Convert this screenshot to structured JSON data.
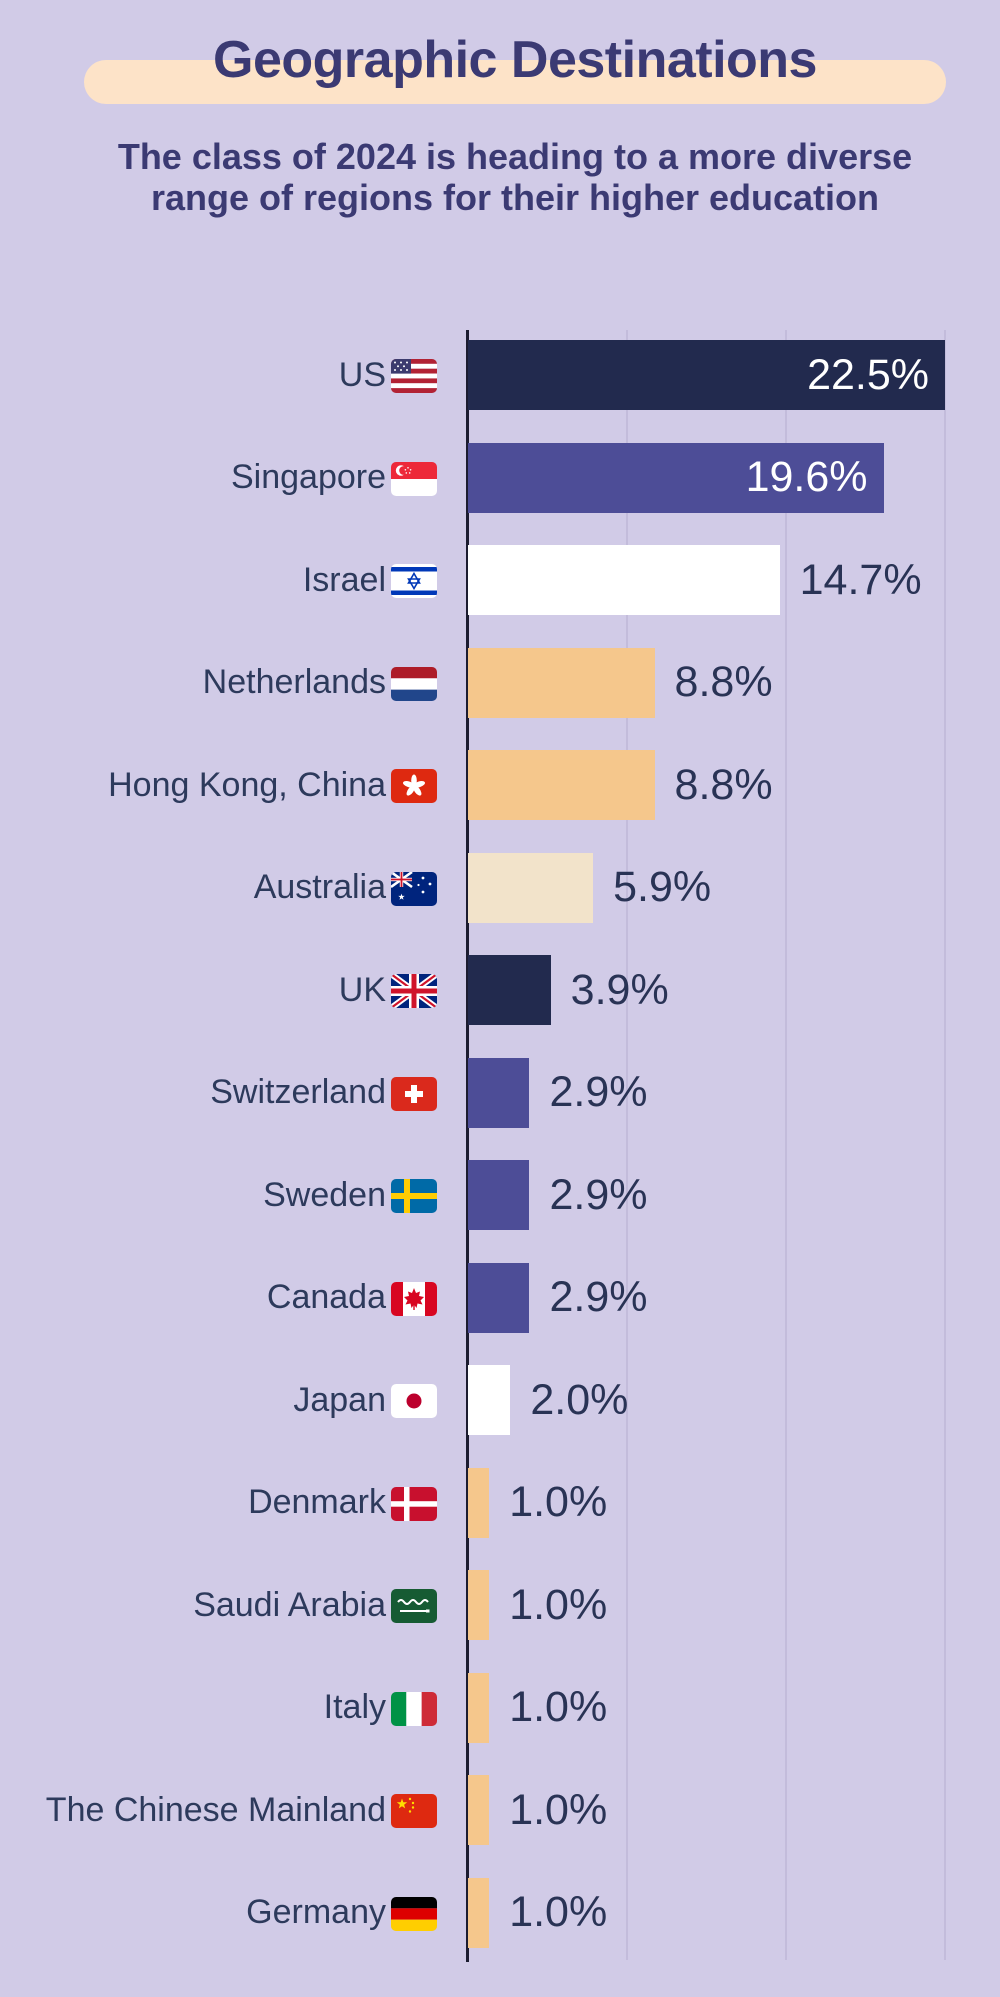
{
  "page": {
    "background": "#d1cbe7"
  },
  "header": {
    "title": "Geographic Destinations",
    "subtitle_line1": "The class of 2024 is heading to a more diverse",
    "subtitle_line2": "range of regions for their higher education",
    "title_color": "#3b3a73",
    "pill_color": "#fde3c8"
  },
  "chart_data": {
    "type": "bar",
    "orientation": "horizontal",
    "unit": "%",
    "xlim": [
      0,
      23.6
    ],
    "gridlines_percent": [
      7.5,
      15,
      22.5
    ],
    "grid": true,
    "legend": "none",
    "axis_color": "#1c1c30",
    "gridline_color": "#c3bcdb",
    "category_label_color": "#2d3a5c",
    "value_label_color": "#293355",
    "value_label_inside_color": "#ffffff",
    "categories": [
      "US",
      "Singapore",
      "Israel",
      "Netherlands",
      "Hong Kong, China",
      "Australia",
      "UK",
      "Switzerland",
      "Sweden",
      "Canada",
      "Japan",
      "Denmark",
      "Saudi Arabia",
      "Italy",
      "The Chinese Mainland",
      "Germany"
    ],
    "values": [
      22.5,
      19.6,
      14.7,
      8.8,
      8.8,
      5.9,
      3.9,
      2.9,
      2.9,
      2.9,
      2.0,
      1.0,
      1.0,
      1.0,
      1.0,
      1.0
    ],
    "items": [
      {
        "label": "US",
        "flag": "us-flag",
        "value": 22.5,
        "display": "22.5%",
        "color": "#222a4e",
        "value_label": "inside"
      },
      {
        "label": "Singapore",
        "flag": "singapore-flag",
        "value": 19.6,
        "display": "19.6%",
        "color": "#4d4d97",
        "value_label": "inside"
      },
      {
        "label": "Israel",
        "flag": "israel-flag",
        "value": 14.7,
        "display": "14.7%",
        "color": "#ffffff",
        "value_label": "outside"
      },
      {
        "label": "Netherlands",
        "flag": "netherlands-flag",
        "value": 8.8,
        "display": "8.8%",
        "color": "#f5c78c",
        "value_label": "outside"
      },
      {
        "label": "Hong Kong, China",
        "flag": "hong-kong-flag",
        "value": 8.8,
        "display": "8.8%",
        "color": "#f5c78c",
        "value_label": "outside"
      },
      {
        "label": "Australia",
        "flag": "australia-flag",
        "value": 5.9,
        "display": "5.9%",
        "color": "#f2e3ca",
        "value_label": "outside"
      },
      {
        "label": "UK",
        "flag": "uk-flag",
        "value": 3.9,
        "display": "3.9%",
        "color": "#222a4e",
        "value_label": "outside"
      },
      {
        "label": "Switzerland",
        "flag": "switzerland-flag",
        "value": 2.9,
        "display": "2.9%",
        "color": "#4d4d97",
        "value_label": "outside"
      },
      {
        "label": "Sweden",
        "flag": "sweden-flag",
        "value": 2.9,
        "display": "2.9%",
        "color": "#4d4d97",
        "value_label": "outside"
      },
      {
        "label": "Canada",
        "flag": "canada-flag",
        "value": 2.9,
        "display": "2.9%",
        "color": "#4d4d97",
        "value_label": "outside"
      },
      {
        "label": "Japan",
        "flag": "japan-flag",
        "value": 2.0,
        "display": "2.0%",
        "color": "#ffffff",
        "value_label": "outside"
      },
      {
        "label": "Denmark",
        "flag": "denmark-flag",
        "value": 1.0,
        "display": "1.0%",
        "color": "#f5c78c",
        "value_label": "outside"
      },
      {
        "label": "Saudi Arabia",
        "flag": "saudi-arabia-flag",
        "value": 1.0,
        "display": "1.0%",
        "color": "#f5c78c",
        "value_label": "outside"
      },
      {
        "label": "Italy",
        "flag": "italy-flag",
        "value": 1.0,
        "display": "1.0%",
        "color": "#f5c78c",
        "value_label": "outside"
      },
      {
        "label": "The Chinese Mainland",
        "flag": "china-flag",
        "value": 1.0,
        "display": "1.0%",
        "color": "#f5c78c",
        "value_label": "outside"
      },
      {
        "label": "Germany",
        "flag": "germany-flag",
        "value": 1.0,
        "display": "1.0%",
        "color": "#f5c78c",
        "value_label": "outside"
      }
    ]
  }
}
